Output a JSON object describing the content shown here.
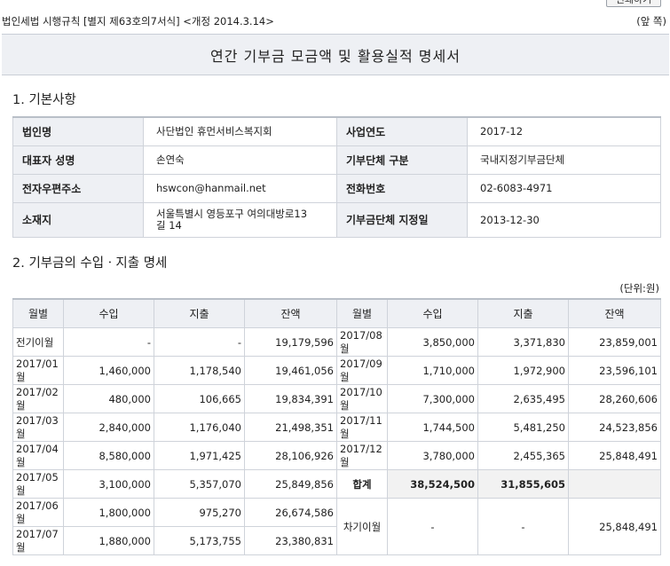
{
  "header": {
    "doc_ref": "법인세법 시행규칙 [별지 제63호의7서식] <개정 2014.3.14>",
    "page_side": "(앞 쪽)",
    "print_label": "인쇄하기"
  },
  "title": "연간 기부금 모금액 및 활용실적 명세서",
  "section1": {
    "heading": "1. 기본사항",
    "rows": [
      {
        "l1": "법인명",
        "v1": "사단법인 휴먼서비스복지회",
        "l2": "사업연도",
        "v2": "2017-12"
      },
      {
        "l1": "대표자 성명",
        "v1": "손연숙",
        "l2": "기부단체 구분",
        "v2": "국내지정기부금단체"
      },
      {
        "l1": "전자우편주소",
        "v1": "hswcon@hanmail.net",
        "l2": "전화번호",
        "v2": "02-6083-4971"
      },
      {
        "l1": "소재지",
        "v1a": "서울특별시 영등포구 여의대방로13",
        "v1b": "길 14",
        "l2": "기부금단체 지정일",
        "v2": "2013-12-30"
      }
    ]
  },
  "section2": {
    "heading": "2. 기부금의 수입ㆍ지출 명세",
    "unit": "(단위:원)",
    "headers": [
      "월별",
      "수입",
      "지출",
      "잔액",
      "월별",
      "수입",
      "지출",
      "잔액"
    ],
    "left_rows": [
      {
        "month": "전기이월",
        "income": "-",
        "expense": "-",
        "balance": "19,179,596"
      },
      {
        "month": "2017/01월",
        "income": "1,460,000",
        "expense": "1,178,540",
        "balance": "19,461,056"
      },
      {
        "month": "2017/02월",
        "income": "480,000",
        "expense": "106,665",
        "balance": "19,834,391"
      },
      {
        "month": "2017/03월",
        "income": "2,840,000",
        "expense": "1,176,040",
        "balance": "21,498,351"
      },
      {
        "month": "2017/04월",
        "income": "8,580,000",
        "expense": "1,971,425",
        "balance": "28,106,926"
      },
      {
        "month": "2017/05월",
        "income": "3,100,000",
        "expense": "5,357,070",
        "balance": "25,849,856"
      },
      {
        "month": "2017/06월",
        "income": "1,800,000",
        "expense": "975,270",
        "balance": "26,674,586"
      },
      {
        "month": "2017/07월",
        "income": "1,880,000",
        "expense": "5,173,755",
        "balance": "23,380,831"
      }
    ],
    "right_rows": [
      {
        "month": "2017/08월",
        "income": "3,850,000",
        "expense": "3,371,830",
        "balance": "23,859,001"
      },
      {
        "month": "2017/09월",
        "income": "1,710,000",
        "expense": "1,972,900",
        "balance": "23,596,101"
      },
      {
        "month": "2017/10월",
        "income": "7,300,000",
        "expense": "2,635,495",
        "balance": "28,260,606"
      },
      {
        "month": "2017/11월",
        "income": "1,744,500",
        "expense": "5,481,250",
        "balance": "24,523,856"
      },
      {
        "month": "2017/12월",
        "income": "3,780,000",
        "expense": "2,455,365",
        "balance": "25,848,491"
      }
    ],
    "total": {
      "label": "합계",
      "income": "38,524,500",
      "expense": "31,855,605"
    },
    "carry": {
      "label": "차기이월",
      "income": "-",
      "expense": "-",
      "balance": "25,848,491"
    }
  }
}
